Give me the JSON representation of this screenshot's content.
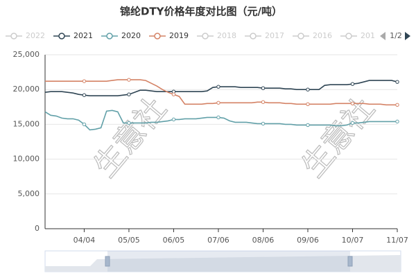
{
  "chart_data": {
    "type": "line",
    "title": "锦纶DTY价格年度对比图（元/吨）",
    "watermark": "生意社",
    "legend_page": "1/2",
    "legend": [
      {
        "name": "2022",
        "active": false
      },
      {
        "name": "2021",
        "active": true,
        "color": "#2f4554"
      },
      {
        "name": "2020",
        "active": true,
        "color": "#61a0a8"
      },
      {
        "name": "2019",
        "active": true,
        "color": "#d48265"
      },
      {
        "name": "2018",
        "active": false
      },
      {
        "name": "2017",
        "active": false
      },
      {
        "name": "2016",
        "active": false
      },
      {
        "name": "201",
        "active": false
      }
    ],
    "categories": [
      null,
      null,
      null,
      null,
      null,
      null,
      null,
      "04/04",
      null,
      null,
      null,
      null,
      null,
      null,
      null,
      "05/05",
      null,
      null,
      null,
      null,
      null,
      null,
      null,
      "06/05",
      null,
      null,
      null,
      null,
      null,
      null,
      null,
      "07/06",
      null,
      null,
      null,
      null,
      null,
      null,
      null,
      "08/06",
      null,
      null,
      null,
      null,
      null,
      null,
      null,
      "09/06",
      null,
      null,
      null,
      null,
      null,
      null,
      null,
      "10/07",
      null,
      null,
      null,
      null,
      null,
      null,
      null,
      "11/07"
    ],
    "series": [
      {
        "name": "2021",
        "color": "#2f4554",
        "values": [
          19600,
          19700,
          19700,
          19700,
          19600,
          19500,
          19300,
          19200,
          19100,
          19100,
          19100,
          19100,
          19100,
          19100,
          19200,
          19300,
          19600,
          19900,
          19900,
          19800,
          19700,
          19700,
          19700,
          19700,
          19700,
          19700,
          19700,
          19700,
          19700,
          19800,
          20300,
          20400,
          20400,
          20400,
          20400,
          20300,
          20300,
          20300,
          20300,
          20200,
          20200,
          20200,
          20200,
          20100,
          20100,
          20000,
          20000,
          20000,
          20000,
          20000,
          20600,
          20700,
          20700,
          20700,
          20700,
          20800,
          20900,
          21100,
          21300,
          21300,
          21300,
          21300,
          21300,
          21100
        ]
      },
      {
        "name": "2020",
        "color": "#61a0a8",
        "values": [
          16800,
          16300,
          16200,
          15900,
          15800,
          15800,
          15600,
          15000,
          14200,
          14300,
          14500,
          16900,
          17000,
          16800,
          15200,
          15200,
          15200,
          15200,
          15200,
          15300,
          15300,
          15400,
          15500,
          15700,
          15700,
          15800,
          15800,
          15800,
          15900,
          16000,
          16000,
          16000,
          15900,
          15500,
          15300,
          15300,
          15300,
          15200,
          15100,
          15100,
          15100,
          15100,
          15100,
          15000,
          15000,
          14900,
          14900,
          14900,
          14900,
          14900,
          14900,
          14900,
          14800,
          14800,
          14900,
          15200,
          15200,
          15300,
          15400,
          15400,
          15400,
          15400,
          15400,
          15400
        ]
      },
      {
        "name": "2019",
        "color": "#d48265",
        "values": [
          21200,
          21200,
          21200,
          21200,
          21200,
          21200,
          21200,
          21200,
          21200,
          21200,
          21200,
          21200,
          21300,
          21400,
          21400,
          21400,
          21400,
          21400,
          21300,
          20900,
          20500,
          20000,
          19600,
          19300,
          19000,
          17900,
          17900,
          17900,
          17900,
          18000,
          18000,
          18100,
          18100,
          18100,
          18100,
          18100,
          18100,
          18100,
          18200,
          18200,
          18100,
          18100,
          18100,
          18000,
          18000,
          17900,
          17900,
          17900,
          17900,
          17900,
          17900,
          17900,
          18000,
          18000,
          18000,
          18000,
          18000,
          18000,
          17900,
          17900,
          17900,
          17800,
          17800,
          17800
        ]
      }
    ],
    "ylim": [
      0,
      25000
    ],
    "yticks": [
      0,
      {
        "value": 5000,
        "label": "5,000"
      },
      {
        "value": 10000,
        "label": "10,000"
      },
      {
        "value": 15000,
        "label": "15,000"
      },
      {
        "value": 20000,
        "label": "20,000"
      },
      {
        "value": 25000,
        "label": "25,000"
      }
    ],
    "grid": true
  }
}
